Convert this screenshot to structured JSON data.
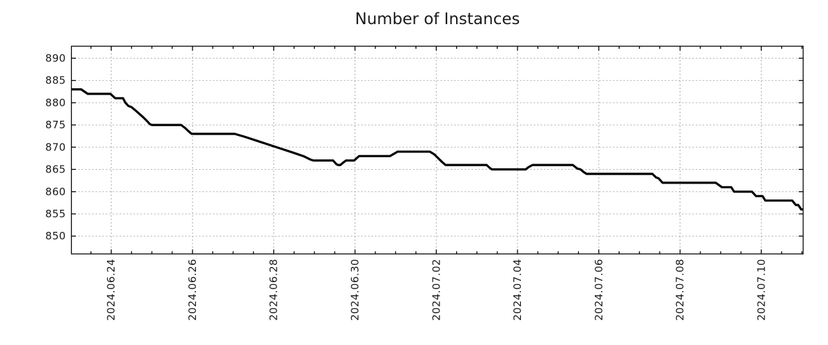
{
  "chart_data": {
    "type": "line",
    "title": "Number of Instances",
    "legend": "none",
    "x_axis": {
      "kind": "time",
      "unit": "days since 2024.06.23 00:00",
      "domain": [
        0.02,
        18.03
      ],
      "major_ticks": [
        {
          "day": 1,
          "label": "2024.06.24"
        },
        {
          "day": 3,
          "label": "2024.06.26"
        },
        {
          "day": 5,
          "label": "2024.06.28"
        },
        {
          "day": 7,
          "label": "2024.06.30"
        },
        {
          "day": 9,
          "label": "2024.07.02"
        },
        {
          "day": 11,
          "label": "2024.07.04"
        },
        {
          "day": 13,
          "label": "2024.07.06"
        },
        {
          "day": 15,
          "label": "2024.07.08"
        },
        {
          "day": 17,
          "label": "2024.07.10"
        }
      ],
      "minor_tick_step": 0.5,
      "grid_on_major": true,
      "label_rotation_deg": -90
    },
    "y_axis": {
      "range": [
        846.0,
        892.7
      ],
      "ticks": [
        850,
        855,
        860,
        865,
        870,
        875,
        880,
        885,
        890
      ],
      "grid": true,
      "mirrored_ticks": true
    },
    "series": [
      {
        "name": "instances",
        "color": "#000000",
        "line_width": 3.2,
        "points": [
          [
            0.02,
            883
          ],
          [
            0.26,
            883
          ],
          [
            0.42,
            882
          ],
          [
            0.98,
            882
          ],
          [
            1.1,
            881
          ],
          [
            1.29,
            881
          ],
          [
            1.35,
            880
          ],
          [
            1.42,
            879.3
          ],
          [
            1.5,
            879
          ],
          [
            1.58,
            878.4
          ],
          [
            1.68,
            877.6
          ],
          [
            1.78,
            876.8
          ],
          [
            1.88,
            875.9
          ],
          [
            1.95,
            875.2
          ],
          [
            2.0,
            875
          ],
          [
            2.72,
            875
          ],
          [
            2.82,
            874.3
          ],
          [
            2.9,
            873.6
          ],
          [
            2.98,
            873
          ],
          [
            4.04,
            873
          ],
          [
            4.3,
            872.3
          ],
          [
            4.6,
            871.4
          ],
          [
            4.9,
            870.5
          ],
          [
            5.2,
            869.6
          ],
          [
            5.5,
            868.7
          ],
          [
            5.75,
            867.9
          ],
          [
            5.91,
            867.2
          ],
          [
            5.98,
            867
          ],
          [
            6.46,
            867
          ],
          [
            6.54,
            866.2
          ],
          [
            6.58,
            866
          ],
          [
            6.64,
            866
          ],
          [
            6.72,
            866.6
          ],
          [
            6.78,
            867
          ],
          [
            6.98,
            867
          ],
          [
            7.1,
            868
          ],
          [
            7.86,
            868
          ],
          [
            8.05,
            869
          ],
          [
            8.84,
            869
          ],
          [
            8.95,
            868.4
          ],
          [
            9.05,
            867.5
          ],
          [
            9.15,
            866.6
          ],
          [
            9.23,
            866
          ],
          [
            10.24,
            866
          ],
          [
            10.31,
            865.4
          ],
          [
            10.37,
            865
          ],
          [
            11.2,
            865
          ],
          [
            11.27,
            865.5
          ],
          [
            11.37,
            866
          ],
          [
            12.36,
            866
          ],
          [
            12.47,
            865.2
          ],
          [
            12.55,
            865
          ],
          [
            12.63,
            864.4
          ],
          [
            12.7,
            864
          ],
          [
            14.32,
            864
          ],
          [
            14.41,
            863.2
          ],
          [
            14.47,
            863
          ],
          [
            14.57,
            862
          ],
          [
            15.88,
            862
          ],
          [
            16.03,
            861
          ],
          [
            16.26,
            861
          ],
          [
            16.33,
            860
          ],
          [
            16.77,
            860
          ],
          [
            16.87,
            859
          ],
          [
            17.03,
            859
          ],
          [
            17.1,
            858
          ],
          [
            17.76,
            858
          ],
          [
            17.85,
            857
          ],
          [
            17.91,
            857
          ],
          [
            17.98,
            856
          ],
          [
            18.03,
            856
          ]
        ]
      }
    ],
    "style": {
      "background": "#ffffff",
      "grid_color": "#a9a9a9",
      "grid_dash": "2 3",
      "axis_color": "#000000",
      "text_color": "#1b1b1b"
    }
  }
}
